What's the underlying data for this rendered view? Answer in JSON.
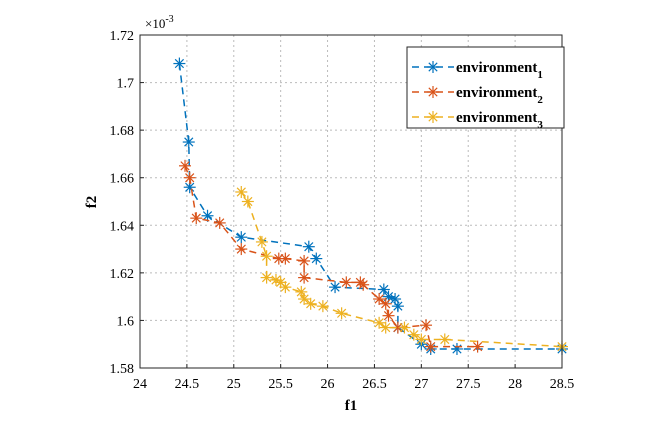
{
  "chart_data": {
    "type": "line",
    "title": "",
    "xlabel": "f1",
    "ylabel": "f2",
    "y_multiplier_label": "×10",
    "y_multiplier_exponent": "-3",
    "xlim": [
      24,
      28.5
    ],
    "ylim": [
      1.58,
      1.72
    ],
    "xticks": [
      "24",
      "24.5",
      "25",
      "25.5",
      "26",
      "26.5",
      "27",
      "27.5",
      "28",
      "28.5"
    ],
    "yticks": [
      "1.58",
      "1.6",
      "1.62",
      "1.64",
      "1.66",
      "1.68",
      "1.7",
      "1.72"
    ],
    "grid": true,
    "legend_position": "top-right",
    "marker": "asterisk",
    "line_style": "dashed",
    "series": [
      {
        "name": "environment",
        "subscript": "1",
        "color": "#0072BD",
        "points": [
          [
            24.42,
            1.708
          ],
          [
            24.52,
            1.675
          ],
          [
            24.53,
            1.656
          ],
          [
            24.72,
            1.644
          ],
          [
            25.08,
            1.635
          ],
          [
            25.8,
            1.631
          ],
          [
            25.88,
            1.626
          ],
          [
            26.08,
            1.614
          ],
          [
            26.6,
            1.613
          ],
          [
            26.65,
            1.61
          ],
          [
            26.72,
            1.609
          ],
          [
            26.75,
            1.606
          ],
          [
            26.75,
            1.597
          ],
          [
            27.0,
            1.59
          ],
          [
            27.1,
            1.588
          ],
          [
            27.38,
            1.588
          ],
          [
            28.5,
            1.588
          ]
        ]
      },
      {
        "name": "environment",
        "subscript": "2",
        "color": "#D95319",
        "points": [
          [
            24.48,
            1.665
          ],
          [
            24.53,
            1.66
          ],
          [
            24.6,
            1.643
          ],
          [
            24.85,
            1.641
          ],
          [
            25.08,
            1.63
          ],
          [
            25.48,
            1.626
          ],
          [
            25.55,
            1.626
          ],
          [
            25.75,
            1.625
          ],
          [
            25.75,
            1.618
          ],
          [
            26.2,
            1.616
          ],
          [
            26.35,
            1.616
          ],
          [
            26.38,
            1.615
          ],
          [
            26.55,
            1.609
          ],
          [
            26.62,
            1.607
          ],
          [
            26.65,
            1.602
          ],
          [
            26.75,
            1.597
          ],
          [
            27.05,
            1.598
          ],
          [
            27.1,
            1.589
          ],
          [
            27.6,
            1.589
          ]
        ]
      },
      {
        "name": "environment",
        "subscript": "3",
        "color": "#EDB120",
        "points": [
          [
            25.08,
            1.654
          ],
          [
            25.15,
            1.65
          ],
          [
            25.3,
            1.633
          ],
          [
            25.35,
            1.627
          ],
          [
            25.35,
            1.618
          ],
          [
            25.45,
            1.617
          ],
          [
            25.5,
            1.616
          ],
          [
            25.55,
            1.614
          ],
          [
            25.72,
            1.612
          ],
          [
            25.75,
            1.609
          ],
          [
            25.82,
            1.607
          ],
          [
            25.95,
            1.606
          ],
          [
            26.15,
            1.603
          ],
          [
            26.55,
            1.599
          ],
          [
            26.62,
            1.597
          ],
          [
            26.82,
            1.597
          ],
          [
            26.92,
            1.594
          ],
          [
            27.0,
            1.592
          ],
          [
            27.25,
            1.592
          ],
          [
            28.5,
            1.589
          ]
        ]
      }
    ]
  }
}
